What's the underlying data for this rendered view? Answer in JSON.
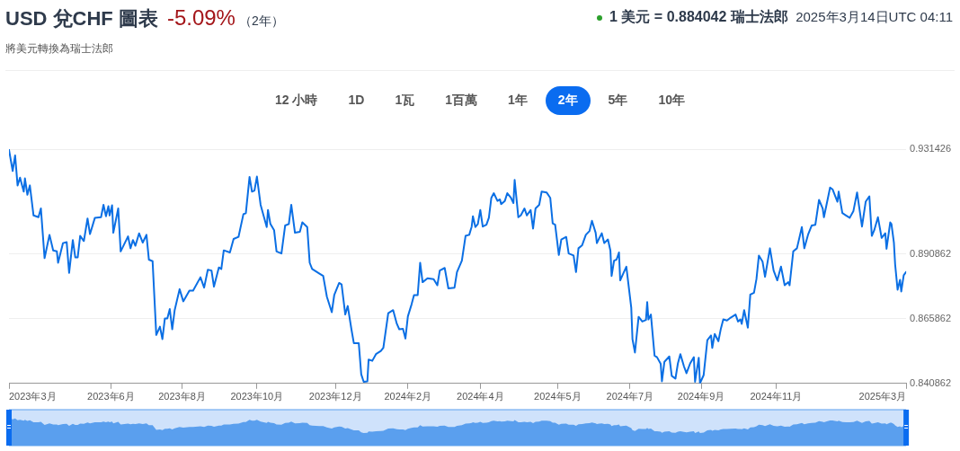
{
  "chart_data": {
    "type": "line",
    "title": "USD 兌CHF 圖表",
    "subtitle": "將美元轉換為瑞士法郎",
    "annotations": [
      "-5.09%",
      "（2年）",
      "1 美元 = 0.884042 瑞士法郎",
      "2025年3月14日UTC 04:11",
      "12 小時",
      "1D",
      "1瓦",
      "1百萬",
      "1年",
      "2年",
      "5年",
      "10年"
    ],
    "x": [
      "2023-03-14",
      "2023-03-17",
      "2023-03-19",
      "2023-03-21",
      "2023-03-23",
      "2023-03-26",
      "2023-03-27",
      "2023-03-29",
      "2023-03-31",
      "2023-04-03",
      "2023-04-07",
      "2023-04-09",
      "2023-04-12",
      "2023-04-16",
      "2023-04-19",
      "2023-04-22",
      "2023-04-23",
      "2023-04-27",
      "2023-04-30",
      "2023-05-02",
      "2023-05-05",
      "2023-05-07",
      "2023-05-09",
      "2023-05-11",
      "2023-05-14",
      "2023-05-17",
      "2023-05-19",
      "2023-05-23",
      "2023-05-28",
      "2023-05-30",
      "2023-06-01",
      "2023-06-03",
      "2023-06-04",
      "2023-06-06",
      "2023-06-07",
      "2023-06-11",
      "2023-06-13",
      "2023-06-19",
      "2023-06-21",
      "2023-06-23",
      "2023-06-25",
      "2023-06-28",
      "2023-07-01",
      "2023-07-04",
      "2023-07-06",
      "2023-07-09",
      "2023-07-12",
      "2023-07-15",
      "2023-07-17",
      "2023-07-19",
      "2023-07-21",
      "2023-07-23",
      "2023-07-25",
      "2023-07-27",
      "2023-07-31",
      "2023-08-03",
      "2023-08-08",
      "2023-08-11",
      "2023-08-17",
      "2023-08-20",
      "2023-08-23",
      "2023-08-26",
      "2023-08-28",
      "2023-09-01",
      "2023-09-03",
      "2023-09-05",
      "2023-09-10",
      "2023-09-13",
      "2023-09-17",
      "2023-09-21",
      "2023-09-23",
      "2023-09-26",
      "2023-09-28",
      "2023-09-30",
      "2023-10-02",
      "2023-10-05",
      "2023-10-10",
      "2023-10-11",
      "2023-10-13",
      "2023-10-16",
      "2023-10-18",
      "2023-10-22",
      "2023-10-25",
      "2023-10-28",
      "2023-10-30",
      "2023-11-02",
      "2023-11-06",
      "2023-11-08",
      "2023-11-12",
      "2023-11-14",
      "2023-11-16",
      "2023-11-22",
      "2023-11-25",
      "2023-11-28",
      "2023-12-02",
      "2023-12-04",
      "2023-12-08",
      "2023-12-10",
      "2023-12-13",
      "2023-12-15",
      "2023-12-18",
      "2023-12-20",
      "2023-12-24",
      "2023-12-26",
      "2023-12-28",
      "2023-12-31",
      "2024-01-01",
      "2024-01-04",
      "2024-01-07",
      "2024-01-11",
      "2024-01-13",
      "2024-01-17",
      "2024-01-21",
      "2024-01-24",
      "2024-01-26",
      "2024-01-29",
      "2024-01-31",
      "2024-02-02",
      "2024-02-05",
      "2024-02-07",
      "2024-02-10",
      "2024-02-12",
      "2024-02-14",
      "2024-02-18",
      "2024-02-23",
      "2024-02-26",
      "2024-02-28",
      "2024-03-03",
      "2024-03-06",
      "2024-03-11",
      "2024-03-13",
      "2024-03-17",
      "2024-03-20",
      "2024-03-23",
      "2024-03-25",
      "2024-03-26",
      "2024-03-28",
      "2024-03-30",
      "2024-04-01",
      "2024-04-03",
      "2024-04-06",
      "2024-04-08",
      "2024-04-10",
      "2024-04-12",
      "2024-04-15",
      "2024-04-17",
      "2024-04-18",
      "2024-04-21",
      "2024-04-23",
      "2024-04-26",
      "2024-04-28",
      "2024-04-29",
      "2024-05-02",
      "2024-05-04",
      "2024-05-07",
      "2024-05-09",
      "2024-05-12",
      "2024-05-14",
      "2024-05-16",
      "2024-05-19",
      "2024-05-21",
      "2024-05-25",
      "2024-05-28",
      "2024-05-30",
      "2024-06-01",
      "2024-06-04",
      "2024-06-06",
      "2024-06-10",
      "2024-06-12",
      "2024-06-16",
      "2024-06-18",
      "2024-06-20",
      "2024-06-23",
      "2024-06-26",
      "2024-06-29",
      "2024-07-01",
      "2024-07-04",
      "2024-07-05",
      "2024-07-07",
      "2024-07-09",
      "2024-07-11",
      "2024-07-14",
      "2024-07-16",
      "2024-07-17",
      "2024-07-19",
      "2024-07-21",
      "2024-07-23",
      "2024-07-24",
      "2024-07-27",
      "2024-07-29",
      "2024-08-02",
      "2024-08-03",
      "2024-08-05",
      "2024-08-08",
      "2024-08-11",
      "2024-08-14",
      "2024-08-15",
      "2024-08-16",
      "2024-08-18",
      "2024-08-21",
      "2024-08-23",
      "2024-08-26",
      "2024-08-27",
      "2024-08-29",
      "2024-09-02",
      "2024-09-04",
      "2024-09-07",
      "2024-09-09",
      "2024-09-11",
      "2024-09-14",
      "2024-09-16",
      "2024-09-19",
      "2024-09-22",
      "2024-09-23",
      "2024-09-26",
      "2024-09-27",
      "2024-09-30",
      "2024-10-03",
      "2024-10-06",
      "2024-10-07",
      "2024-10-09",
      "2024-10-12",
      "2024-10-14",
      "2024-10-16",
      "2024-10-19",
      "2024-10-22",
      "2024-10-26",
      "2024-10-28",
      "2024-10-30",
      "2024-10-31",
      "2024-11-02",
      "2024-11-05",
      "2024-11-07",
      "2024-11-10",
      "2024-11-12",
      "2024-11-14",
      "2024-11-17",
      "2024-11-19",
      "2024-11-23",
      "2024-11-26",
      "2024-11-29",
      "2024-12-02",
      "2024-12-05",
      "2024-12-08",
      "2024-12-09",
      "2024-12-12",
      "2024-12-15",
      "2024-12-19",
      "2024-12-21",
      "2024-12-24",
      "2024-12-27",
      "2024-12-30",
      "2025-01-02",
      "2025-01-05",
      "2025-01-06",
      "2025-01-09",
      "2025-01-11",
      "2025-01-13",
      "2025-01-17",
      "2025-01-18",
      "2025-01-21",
      "2025-01-24",
      "2025-01-27",
      "2025-01-30",
      "2025-02-02",
      "2025-02-06",
      "2025-02-09",
      "2025-02-12",
      "2025-02-14",
      "2025-02-16",
      "2025-02-19",
      "2025-02-22",
      "2025-02-25",
      "2025-02-26",
      "2025-03-01",
      "2025-03-02",
      "2025-03-04",
      "2025-03-05",
      "2025-03-07",
      "2025-03-09",
      "2025-03-10",
      "2025-03-12",
      "2025-03-14"
    ],
    "series": [
      {
        "color": "#0b6fe4",
        "values": [
          0.9312,
          0.923,
          0.929,
          0.9174,
          0.9204,
          0.915,
          0.9201,
          0.9138,
          0.9174,
          0.9058,
          0.9051,
          0.9085,
          0.8893,
          0.8983,
          0.8923,
          0.8919,
          0.8875,
          0.8951,
          0.8955,
          0.8836,
          0.8963,
          0.8896,
          0.8896,
          0.8979,
          0.8959,
          0.9046,
          0.8986,
          0.9049,
          0.9051,
          0.9099,
          0.9055,
          0.9094,
          0.9058,
          0.9097,
          0.8991,
          0.9085,
          0.8919,
          0.8977,
          0.8931,
          0.8963,
          0.8941,
          0.8989,
          0.8953,
          0.8983,
          0.8887,
          0.8881,
          0.8596,
          0.8628,
          0.858,
          0.866,
          0.866,
          0.8696,
          0.8618,
          0.8692,
          0.8773,
          0.8726,
          0.8767,
          0.8767,
          0.8819,
          0.8779,
          0.8848,
          0.8845,
          0.8783,
          0.8857,
          0.8851,
          0.8923,
          0.8915,
          0.8967,
          0.8975,
          0.9063,
          0.9067,
          0.9207,
          0.915,
          0.9154,
          0.9208,
          0.9099,
          0.9013,
          0.9079,
          0.9025,
          0.9001,
          0.8919,
          0.8911,
          0.9019,
          0.9025,
          0.9099,
          0.8991,
          0.8995,
          0.9031,
          0.9013,
          0.8875,
          0.8851,
          0.8833,
          0.8824,
          0.8744,
          0.8684,
          0.875,
          0.8797,
          0.8791,
          0.8675,
          0.8708,
          0.8618,
          0.8564,
          0.8564,
          0.8444,
          0.8415,
          0.8417,
          0.8501,
          0.8496,
          0.8522,
          0.8534,
          0.8546,
          0.868,
          0.8692,
          0.8639,
          0.8618,
          0.862,
          0.8582,
          0.8668,
          0.8714,
          0.875,
          0.875,
          0.8875,
          0.88,
          0.8815,
          0.8812,
          0.8788,
          0.8845,
          0.8855,
          0.8776,
          0.8779,
          0.8839,
          0.8883,
          0.8979,
          0.8983,
          0.9015,
          0.9055,
          0.9013,
          0.9025,
          0.9079,
          0.9015,
          0.9022,
          0.9049,
          0.9126,
          0.9144,
          0.9114,
          0.912,
          0.9102,
          0.9114,
          0.9144,
          0.9126,
          0.9106,
          0.9195,
          0.9051,
          0.9058,
          0.9085,
          0.9058,
          0.9079,
          0.9007,
          0.9085,
          0.9099,
          0.915,
          0.9147,
          0.9126,
          0.9027,
          0.9022,
          0.8905,
          0.8965,
          0.8975,
          0.8911,
          0.8903,
          0.8839,
          0.8931,
          0.8943,
          0.8983,
          0.8998,
          0.9037,
          0.8991,
          0.8951,
          0.8971,
          0.8989,
          0.8951,
          0.8965,
          0.8923,
          0.8824,
          0.8883,
          0.8887,
          0.8915,
          0.8807,
          0.8839,
          0.886,
          0.8702,
          0.858,
          0.8528,
          0.8666,
          0.8648,
          0.8654,
          0.8723,
          0.8656,
          0.8675,
          0.8516,
          0.851,
          0.8484,
          0.8417,
          0.8492,
          0.8513,
          0.8438,
          0.8427,
          0.8486,
          0.8522,
          0.8474,
          0.8448,
          0.8486,
          0.851,
          0.8415,
          0.8508,
          0.8409,
          0.8441,
          0.8576,
          0.8594,
          0.8546,
          0.86,
          0.8572,
          0.862,
          0.8656,
          0.8652,
          0.8663,
          0.8675,
          0.8648,
          0.8656,
          0.8639,
          0.8692,
          0.8624,
          0.8752,
          0.8759,
          0.8812,
          0.8903,
          0.8879,
          0.8821,
          0.8931,
          0.8845,
          0.8807,
          0.886,
          0.8788,
          0.88,
          0.8788,
          0.8919,
          0.8931,
          0.9013,
          0.8931,
          0.8983,
          0.9019,
          0.9022,
          0.9118,
          0.9085,
          0.9051,
          0.912,
          0.9166,
          0.9159,
          0.9111,
          0.915,
          0.9067,
          0.9058,
          0.9049,
          0.9075,
          0.9147,
          0.9015,
          0.9111,
          0.9132,
          0.8979,
          0.9001,
          0.9051,
          0.8971,
          0.8989,
          0.8929,
          0.9031,
          0.9025,
          0.8953,
          0.8869,
          0.8771,
          0.8809,
          0.8764,
          0.8827,
          0.884
        ]
      }
    ],
    "xlim": [
      "2023-03-14",
      "2025-03-14"
    ],
    "xticks": [
      {
        "value": "2023-03-14",
        "label": "2023年3月"
      },
      {
        "value": "2023-06-05",
        "label": "2023年6月"
      },
      {
        "value": "2023-08-02",
        "label": "2023年8月"
      },
      {
        "value": "2023-10-02",
        "label": "2023年10月"
      },
      {
        "value": "2023-12-05",
        "label": "2023年12月"
      },
      {
        "value": "2024-02-02",
        "label": "2024年2月"
      },
      {
        "value": "2024-04-01",
        "label": "2024年4月"
      },
      {
        "value": "2024-06-03",
        "label": "2024年5月"
      },
      {
        "value": "2024-08-01",
        "label": "2024年7月"
      },
      {
        "value": "2024-09-28",
        "label": "2024年9月"
      },
      {
        "value": "2024-11-28",
        "label": "2024年11月"
      },
      {
        "value": "2025-03-14",
        "label": "2025年3月"
      }
    ],
    "ylim": [
      0.840862,
      0.931426
    ],
    "yticks": [
      0.840862,
      0.865862,
      0.890862,
      0.931426
    ],
    "grid": "y",
    "marker": "none",
    "line_style": "solid",
    "legend": false
  }
}
